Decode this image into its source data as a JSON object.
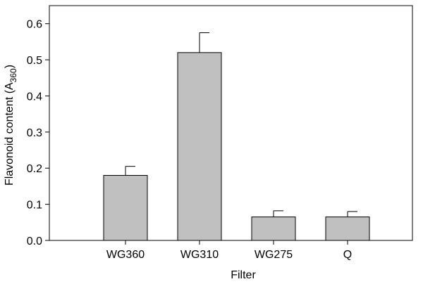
{
  "chart_data": {
    "type": "bar",
    "title": "",
    "xlabel": "Filter",
    "ylabel": "Flavonoid content (A",
    "ylabel_subscript": "360",
    "ylabel_suffix": ")",
    "categories": [
      "WG360",
      "WG310",
      "WG275",
      "Q"
    ],
    "values": [
      0.18,
      0.52,
      0.065,
      0.065
    ],
    "error_upper": [
      0.025,
      0.055,
      0.017,
      0.015
    ],
    "ylim": [
      0,
      0.65
    ],
    "yticks": [
      0.0,
      0.1,
      0.2,
      0.3,
      0.4,
      0.5,
      0.6
    ],
    "ytick_labels": [
      "0.0",
      "0.1",
      "0.2",
      "0.3",
      "0.4",
      "0.5",
      "0.6"
    ],
    "grid": false,
    "legend": "none",
    "colors": {
      "bar_fill": "#c0c0c0",
      "bar_stroke": "#000000",
      "axis": "#000000",
      "background": "#ffffff"
    }
  }
}
